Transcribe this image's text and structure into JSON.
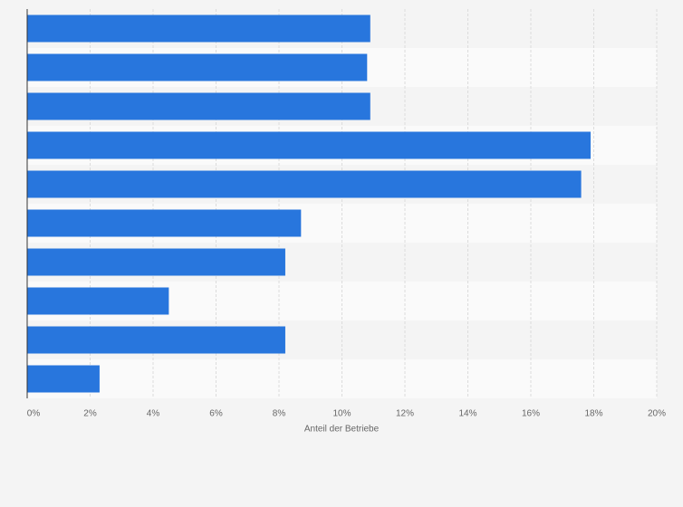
{
  "chart_data": {
    "type": "bar",
    "orientation": "horizontal",
    "categories": [
      null,
      null,
      null,
      null,
      null,
      null,
      null,
      null,
      null,
      null
    ],
    "values": [
      10.9,
      10.8,
      10.9,
      17.9,
      17.6,
      8.7,
      8.2,
      4.5,
      8.2,
      2.3
    ],
    "color": "#2876dd",
    "xlabel": "Anteil der Betriebe",
    "xlim": [
      0,
      20
    ],
    "xticks": [
      {
        "value": 0,
        "label": "0%"
      },
      {
        "value": 2,
        "label": "2%"
      },
      {
        "value": 4,
        "label": "4%"
      },
      {
        "value": 6,
        "label": "6%"
      },
      {
        "value": 8,
        "label": "8%"
      },
      {
        "value": 10,
        "label": "10%"
      },
      {
        "value": 12,
        "label": "12%"
      },
      {
        "value": 14,
        "label": "14%"
      },
      {
        "value": 16,
        "label": "16%"
      },
      {
        "value": 18,
        "label": "18%"
      },
      {
        "value": 20,
        "label": "20%"
      }
    ],
    "grid": true
  }
}
